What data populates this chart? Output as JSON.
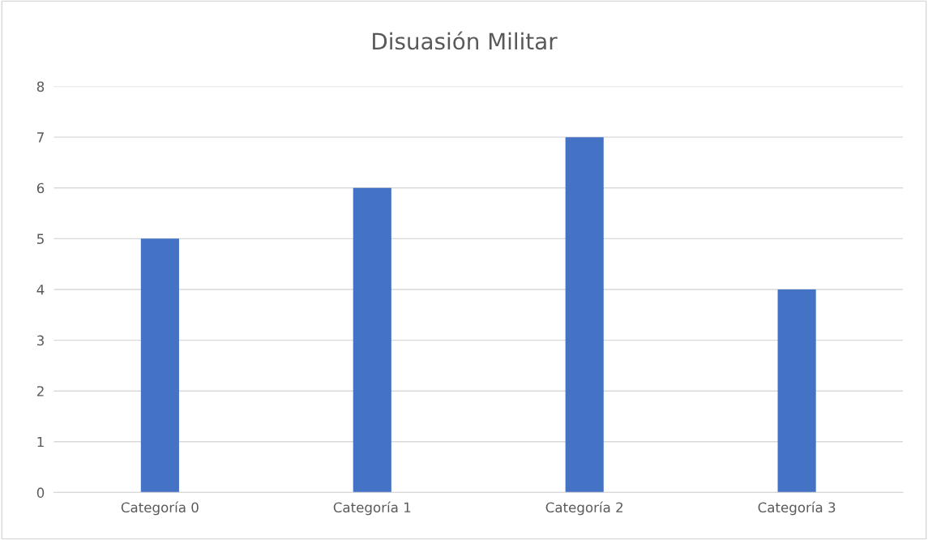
{
  "chart_data": {
    "type": "bar",
    "title": "Disuasión Militar",
    "categories": [
      "Categoría 0",
      "Categoría 1",
      "Categoría 2",
      "Categoría 3"
    ],
    "values": [
      5,
      6,
      7,
      4
    ],
    "color": "#4472c4",
    "ylim": [
      0,
      8
    ],
    "yticks": [
      0,
      1,
      2,
      3,
      4,
      5,
      6,
      7,
      8
    ],
    "grid": "y",
    "legend": false
  }
}
